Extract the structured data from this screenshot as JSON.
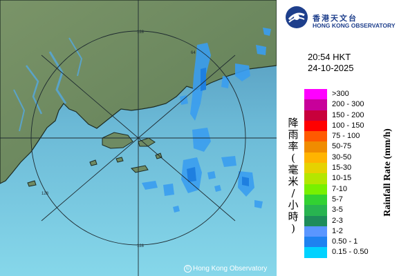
{
  "map": {
    "range_ring_labels": [
      "128",
      "64",
      "128",
      "128"
    ],
    "copyright": "Hong Kong Observatory",
    "colors": {
      "sea_top": "#5aa3c8",
      "sea_bottom": "#7fd0e6",
      "land": "#6f8b63",
      "land_dark": "#4e6a46",
      "ring": "#1e2a30",
      "echo_light": "#3aa0f0",
      "echo_mid": "#1e7fe0"
    }
  },
  "logo": {
    "zh": "香港天文台",
    "en": "HONG KONG OBSERVATORY",
    "icon": "hko-logo-icon",
    "color": "#1e3f8c"
  },
  "timestamp": {
    "time": "20:54 HKT",
    "date": "24-10-2025"
  },
  "legend": {
    "title_zh": "降雨率(毫米/小時)",
    "title_en": "Rainfall Rate (mm/h)",
    "items": [
      {
        "label": ">300",
        "color": "#ff00ff"
      },
      {
        "label": "200 - 300",
        "color": "#c8009a"
      },
      {
        "label": "150 - 200",
        "color": "#c8003c"
      },
      {
        "label": "100 - 150",
        "color": "#ff0000"
      },
      {
        "label": "75 - 100",
        "color": "#ff5a00"
      },
      {
        "label": "50-75",
        "color": "#f08c00"
      },
      {
        "label": "30-50",
        "color": "#ffb400"
      },
      {
        "label": "15-30",
        "color": "#e6d200"
      },
      {
        "label": "10-15",
        "color": "#b4e600"
      },
      {
        "label": "7-10",
        "color": "#78f000"
      },
      {
        "label": "5-7",
        "color": "#32d232"
      },
      {
        "label": "3-5",
        "color": "#28b450"
      },
      {
        "label": "2-3",
        "color": "#1e8c5a"
      },
      {
        "label": "1-2",
        "color": "#5a96ff"
      },
      {
        "label": "0.50 - 1",
        "color": "#1e82f0"
      },
      {
        "label": "0.15 - 0.50",
        "color": "#00d2ff"
      }
    ]
  }
}
